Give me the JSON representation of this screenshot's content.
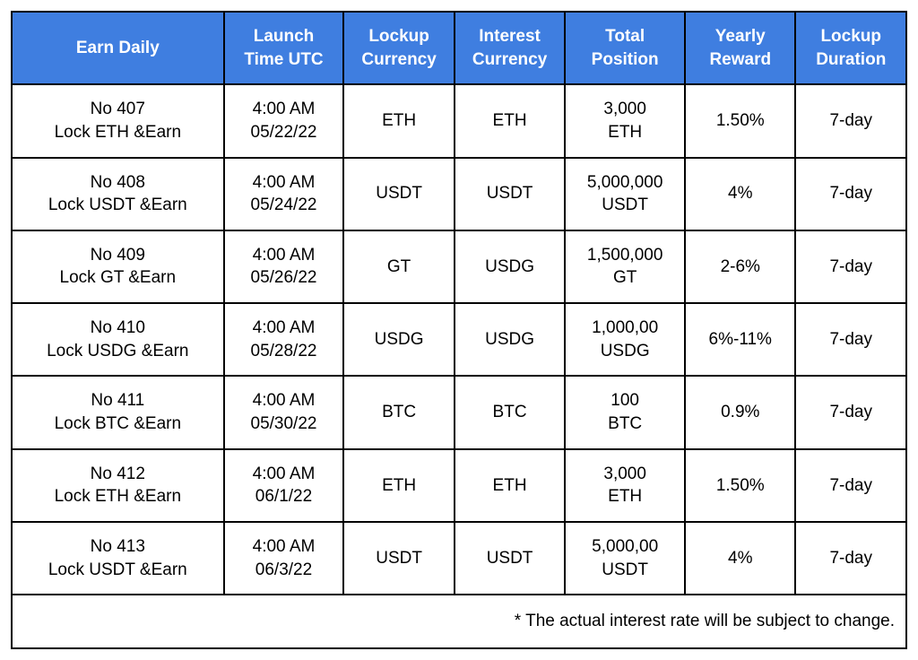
{
  "colors": {
    "header_bg": "#3f7ee0",
    "header_text": "#ffffff",
    "border": "#000000",
    "cell_bg": "#ffffff",
    "cell_text": "#000000"
  },
  "table": {
    "columns": [
      {
        "line1": "Earn Daily",
        "line2": ""
      },
      {
        "line1": "Launch",
        "line2": "Time UTC"
      },
      {
        "line1": "Lockup",
        "line2": "Currency"
      },
      {
        "line1": "Interest",
        "line2": "Currency"
      },
      {
        "line1": "Total",
        "line2": "Position"
      },
      {
        "line1": "Yearly",
        "line2": "Reward"
      },
      {
        "line1": "Lockup",
        "line2": "Duration"
      }
    ],
    "rows": [
      {
        "earn_line1": "No 407",
        "earn_line2": "Lock ETH &Earn",
        "time_line1": "4:00 AM",
        "time_line2": "05/22/22",
        "lockup_currency": "ETH",
        "interest_currency": "ETH",
        "total_line1": "3,000",
        "total_line2": "ETH",
        "yearly_reward": "1.50%",
        "duration": "7-day"
      },
      {
        "earn_line1": "No 408",
        "earn_line2": "Lock USDT &Earn",
        "time_line1": "4:00 AM",
        "time_line2": "05/24/22",
        "lockup_currency": "USDT",
        "interest_currency": "USDT",
        "total_line1": "5,000,000",
        "total_line2": "USDT",
        "yearly_reward": "4%",
        "duration": "7-day"
      },
      {
        "earn_line1": "No 409",
        "earn_line2": "Lock GT &Earn",
        "time_line1": "4:00 AM",
        "time_line2": "05/26/22",
        "lockup_currency": "GT",
        "interest_currency": "USDG",
        "total_line1": "1,500,000",
        "total_line2": "GT",
        "yearly_reward": "2-6%",
        "duration": "7-day"
      },
      {
        "earn_line1": "No 410",
        "earn_line2": "Lock USDG &Earn",
        "time_line1": "4:00 AM",
        "time_line2": "05/28/22",
        "lockup_currency": "USDG",
        "interest_currency": "USDG",
        "total_line1": "1,000,00",
        "total_line2": "USDG",
        "yearly_reward": "6%-11%",
        "duration": "7-day"
      },
      {
        "earn_line1": "No 411",
        "earn_line2": "Lock BTC &Earn",
        "time_line1": "4:00 AM",
        "time_line2": "05/30/22",
        "lockup_currency": "BTC",
        "interest_currency": "BTC",
        "total_line1": "100",
        "total_line2": "BTC",
        "yearly_reward": "0.9%",
        "duration": "7-day"
      },
      {
        "earn_line1": "No 412",
        "earn_line2": "Lock ETH &Earn",
        "time_line1": "4:00 AM",
        "time_line2": "06/1/22",
        "lockup_currency": "ETH",
        "interest_currency": "ETH",
        "total_line1": "3,000",
        "total_line2": "ETH",
        "yearly_reward": "1.50%",
        "duration": "7-day"
      },
      {
        "earn_line1": "No 413",
        "earn_line2": "Lock USDT &Earn",
        "time_line1": "4:00 AM",
        "time_line2": "06/3/22",
        "lockup_currency": "USDT",
        "interest_currency": "USDT",
        "total_line1": "5,000,00",
        "total_line2": "USDT",
        "yearly_reward": "4%",
        "duration": "7-day"
      }
    ],
    "footnote": "* The actual interest rate will be subject to change."
  }
}
